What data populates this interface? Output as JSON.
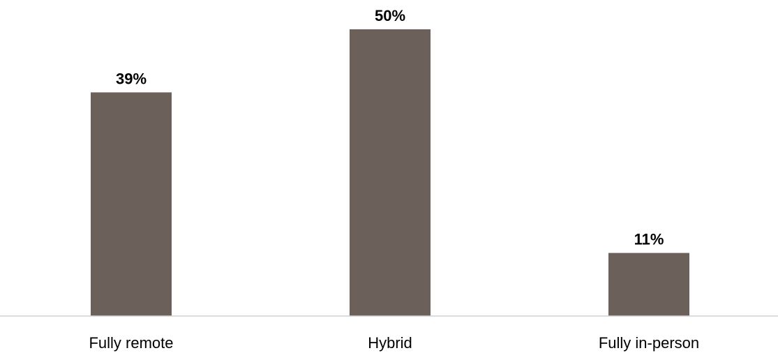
{
  "chart_data": {
    "type": "bar",
    "categories": [
      "Fully remote",
      "Hybrid",
      "Fully in-person"
    ],
    "values": [
      39,
      50,
      11
    ],
    "data_labels": [
      "39%",
      "50%",
      "11%"
    ],
    "title": "",
    "xlabel": "",
    "ylabel": "",
    "ylim": [
      0,
      50
    ],
    "grid": false,
    "legend": "none",
    "colors": {
      "bar": "#6b605a",
      "axis": "#d0d0d0"
    }
  }
}
